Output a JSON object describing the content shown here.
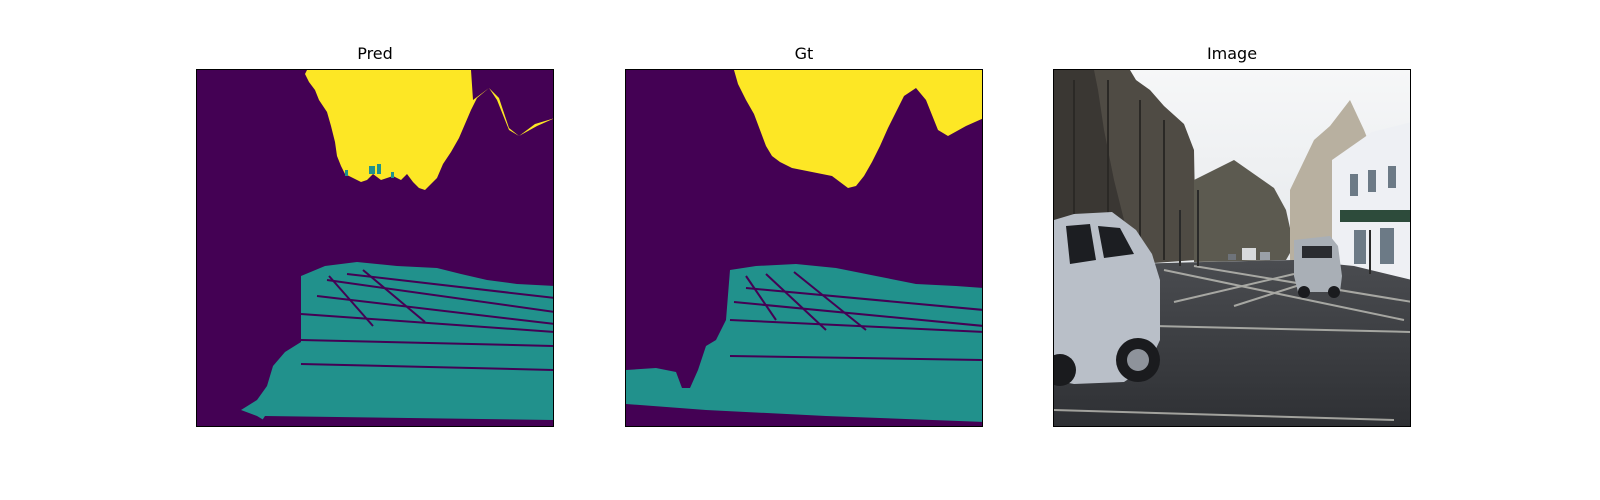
{
  "panels": [
    {
      "title": "Pred"
    },
    {
      "title": "Gt"
    },
    {
      "title": "Image"
    }
  ],
  "colors": {
    "background_class": "#440154",
    "road_class": "#21918c",
    "sky_class": "#fde725"
  }
}
